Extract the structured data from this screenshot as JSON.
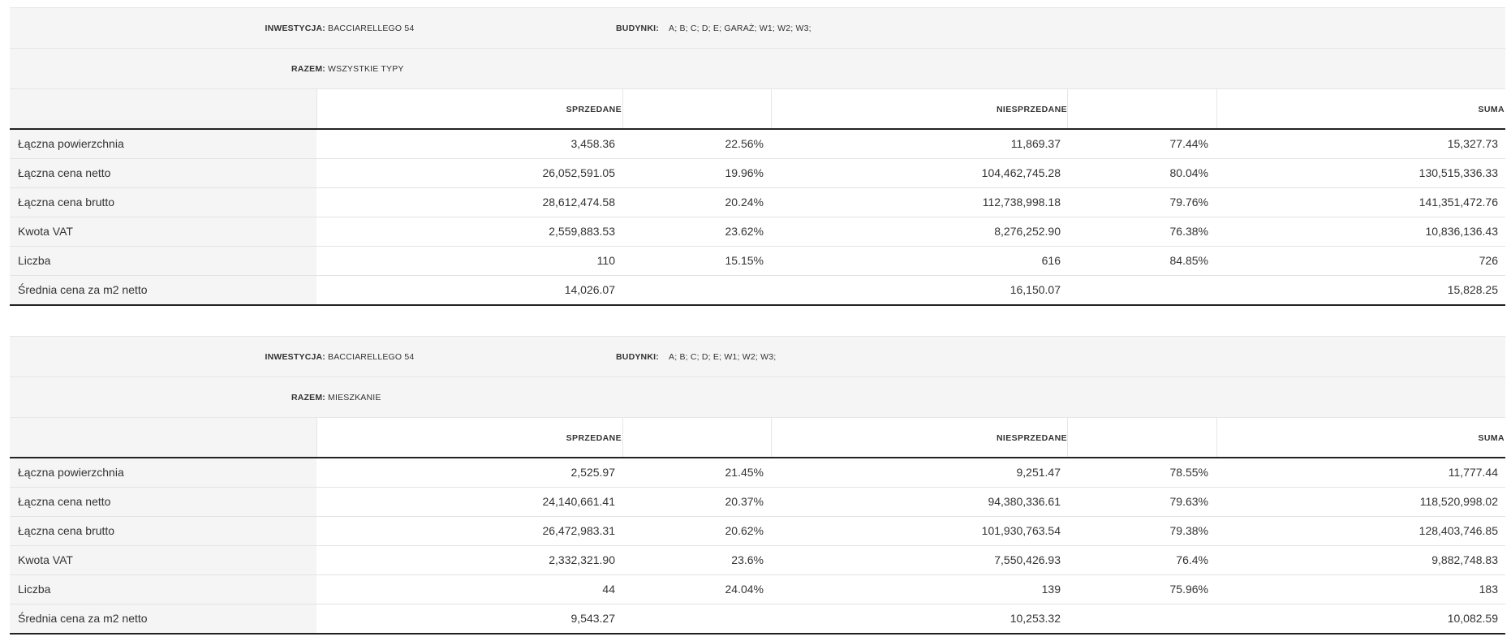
{
  "reports": [
    {
      "investment_label": "INWESTYCJA:",
      "investment_value": "BACCIARELLEGO 54",
      "buildings_label": "BUDYNKI:",
      "buildings_value": "A; B; C; D; E; GARAŻ; W1; W2; W3;",
      "total_label": "RAZEM:",
      "total_value": "WSZYSTKIE TYPY",
      "columns": {
        "sold": "SPRZEDANE",
        "unsold": "NIESPRZEDANE",
        "sum": "SUMA"
      },
      "rows": [
        {
          "label": "Łączna powierzchnia",
          "sold": "3,458.36",
          "sold_pct": "22.56%",
          "unsold": "11,869.37",
          "unsold_pct": "77.44%",
          "sum": "15,327.73"
        },
        {
          "label": "Łączna cena netto",
          "sold": "26,052,591.05",
          "sold_pct": "19.96%",
          "unsold": "104,462,745.28",
          "unsold_pct": "80.04%",
          "sum": "130,515,336.33"
        },
        {
          "label": "Łączna cena brutto",
          "sold": "28,612,474.58",
          "sold_pct": "20.24%",
          "unsold": "112,738,998.18",
          "unsold_pct": "79.76%",
          "sum": "141,351,472.76"
        },
        {
          "label": "Kwota VAT",
          "sold": "2,559,883.53",
          "sold_pct": "23.62%",
          "unsold": "8,276,252.90",
          "unsold_pct": "76.38%",
          "sum": "10,836,136.43"
        },
        {
          "label": "Liczba",
          "sold": "110",
          "sold_pct": "15.15%",
          "unsold": "616",
          "unsold_pct": "84.85%",
          "sum": "726"
        },
        {
          "label": "Średnia cena za m2 netto",
          "sold": "14,026.07",
          "sold_pct": "",
          "unsold": "16,150.07",
          "unsold_pct": "",
          "sum": "15,828.25"
        }
      ]
    },
    {
      "investment_label": "INWESTYCJA:",
      "investment_value": "BACCIARELLEGO 54",
      "buildings_label": "BUDYNKI:",
      "buildings_value": "A; B; C; D; E; W1; W2; W3;",
      "total_label": "RAZEM:",
      "total_value": "MIESZKANIE",
      "columns": {
        "sold": "SPRZEDANE",
        "unsold": "NIESPRZEDANE",
        "sum": "SUMA"
      },
      "rows": [
        {
          "label": "Łączna powierzchnia",
          "sold": "2,525.97",
          "sold_pct": "21.45%",
          "unsold": "9,251.47",
          "unsold_pct": "78.55%",
          "sum": "11,777.44"
        },
        {
          "label": "Łączna cena netto",
          "sold": "24,140,661.41",
          "sold_pct": "20.37%",
          "unsold": "94,380,336.61",
          "unsold_pct": "79.63%",
          "sum": "118,520,998.02"
        },
        {
          "label": "Łączna cena brutto",
          "sold": "26,472,983.31",
          "sold_pct": "20.62%",
          "unsold": "101,930,763.54",
          "unsold_pct": "79.38%",
          "sum": "128,403,746.85"
        },
        {
          "label": "Kwota VAT",
          "sold": "2,332,321.90",
          "sold_pct": "23.6%",
          "unsold": "7,550,426.93",
          "unsold_pct": "76.4%",
          "sum": "9,882,748.83"
        },
        {
          "label": "Liczba",
          "sold": "44",
          "sold_pct": "24.04%",
          "unsold": "139",
          "unsold_pct": "75.96%",
          "sum": "183"
        },
        {
          "label": "Średnia cena za m2 netto",
          "sold": "9,543.27",
          "sold_pct": "",
          "unsold": "10,253.32",
          "unsold_pct": "",
          "sum": "10,082.59"
        }
      ]
    }
  ]
}
